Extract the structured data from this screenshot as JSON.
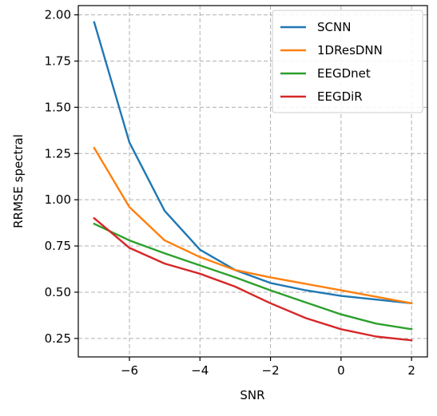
{
  "chart_data": {
    "type": "line",
    "title": "",
    "xlabel": "SNR",
    "ylabel": "RRMSE spectral",
    "xlim": [
      -7.45,
      2.45
    ],
    "ylim": [
      0.15,
      2.05
    ],
    "xticks": [
      -6,
      -4,
      -2,
      0,
      2
    ],
    "xtick_labels": [
      "−6",
      "−4",
      "−2",
      "0",
      "2"
    ],
    "yticks": [
      0.25,
      0.5,
      0.75,
      1.0,
      1.25,
      1.5,
      1.75,
      2.0
    ],
    "ytick_labels": [
      "0.25",
      "0.50",
      "0.75",
      "1.00",
      "1.25",
      "1.50",
      "1.75",
      "2.00"
    ],
    "grid": true,
    "legend_position": "top-right",
    "x": [
      -7,
      -6,
      -5,
      -4,
      -3,
      -2,
      -1,
      0,
      1,
      2
    ],
    "series": [
      {
        "name": "SCNN",
        "color": "#1f77b4",
        "values": [
          1.96,
          1.31,
          0.94,
          0.73,
          0.62,
          0.55,
          0.51,
          0.48,
          0.46,
          0.44
        ]
      },
      {
        "name": "1DResDNN",
        "color": "#ff7f0e",
        "values": [
          1.28,
          0.96,
          0.78,
          0.69,
          0.62,
          0.58,
          0.545,
          0.51,
          0.475,
          0.44
        ]
      },
      {
        "name": "EEGDnet",
        "color": "#2ca02c",
        "values": [
          0.87,
          0.78,
          0.71,
          0.645,
          0.58,
          0.51,
          0.445,
          0.38,
          0.33,
          0.3
        ]
      },
      {
        "name": "EEGDiR",
        "color": "#d62728",
        "values": [
          0.9,
          0.74,
          0.655,
          0.6,
          0.53,
          0.44,
          0.36,
          0.3,
          0.26,
          0.24
        ]
      }
    ]
  }
}
